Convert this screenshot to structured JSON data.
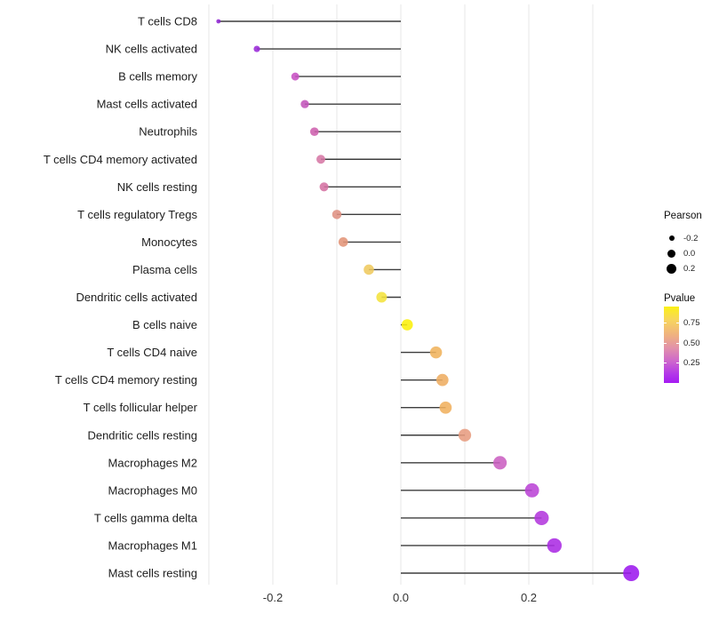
{
  "chart_data": {
    "type": "scatter",
    "variant": "lollipop",
    "orientation": "horizontal",
    "title": "",
    "xlabel": "",
    "ylabel": "",
    "xlim": [
      -0.32,
      0.39
    ],
    "grid": "vertical-major-only",
    "gridline_values": [
      -0.3,
      -0.2,
      -0.1,
      0.0,
      0.1,
      0.2,
      0.3
    ],
    "x_ticks": {
      "values": [
        -0.2,
        0.0,
        0.2
      ],
      "labels": [
        "-0.2",
        "0.0",
        "0.2"
      ]
    },
    "legend_position": "right",
    "points": [
      {
        "category": "T cells CD8",
        "pearson": -0.285,
        "pvalue": 0.1,
        "color": "#8F27D3"
      },
      {
        "category": "NK cells activated",
        "pearson": -0.225,
        "pvalue": 0.11,
        "color": "#9A2AD8"
      },
      {
        "category": "B cells memory",
        "pearson": -0.165,
        "pvalue": 0.28,
        "color": "#C751C3"
      },
      {
        "category": "Mast cells activated",
        "pearson": -0.15,
        "pvalue": 0.3,
        "color": "#C355BB"
      },
      {
        "category": "Neutrophils",
        "pearson": -0.135,
        "pvalue": 0.33,
        "color": "#CE61AE"
      },
      {
        "category": "T cells CD4 memory activated",
        "pearson": -0.125,
        "pvalue": 0.38,
        "color": "#D678A5"
      },
      {
        "category": "NK cells resting",
        "pearson": -0.12,
        "pvalue": 0.37,
        "color": "#D572A3"
      },
      {
        "category": "T cells regulatory  Tregs",
        "pearson": -0.1,
        "pvalue": 0.5,
        "color": "#DF9182"
      },
      {
        "category": "Monocytes",
        "pearson": -0.09,
        "pvalue": 0.52,
        "color": "#E29478"
      },
      {
        "category": "Plasma cells",
        "pearson": -0.05,
        "pvalue": 0.72,
        "color": "#EFC95E"
      },
      {
        "category": "Dendritic cells activated",
        "pearson": -0.03,
        "pvalue": 0.82,
        "color": "#F4E33C"
      },
      {
        "category": "B cells naive",
        "pearson": 0.01,
        "pvalue": 0.92,
        "color": "#FAF00A"
      },
      {
        "category": "T cells CD4 naive",
        "pearson": 0.055,
        "pvalue": 0.66,
        "color": "#F0B35C"
      },
      {
        "category": "T cells CD4 memory resting",
        "pearson": 0.065,
        "pvalue": 0.64,
        "color": "#EEAD62"
      },
      {
        "category": "T cells follicular helper",
        "pearson": 0.07,
        "pvalue": 0.65,
        "color": "#F0B05F"
      },
      {
        "category": "Dendritic cells resting",
        "pearson": 0.1,
        "pvalue": 0.55,
        "color": "#E79C80"
      },
      {
        "category": "Macrophages M2",
        "pearson": 0.155,
        "pvalue": 0.31,
        "color": "#CB60C2"
      },
      {
        "category": "Macrophages M0",
        "pearson": 0.205,
        "pvalue": 0.2,
        "color": "#BB44D6"
      },
      {
        "category": "T cells gamma delta",
        "pearson": 0.22,
        "pvalue": 0.17,
        "color": "#B338DD"
      },
      {
        "category": "Macrophages M1",
        "pearson": 0.24,
        "pvalue": 0.13,
        "color": "#AB2BE4"
      },
      {
        "category": "Mast cells resting",
        "pearson": 0.36,
        "pvalue": 0.05,
        "color": "#9C19EE"
      }
    ]
  },
  "legend": {
    "size": {
      "title": "Pearson",
      "items": [
        {
          "label": "-0.2",
          "value": -0.2
        },
        {
          "label": "0.0",
          "value": 0.0
        },
        {
          "label": "0.2",
          "value": 0.2
        }
      ]
    },
    "color": {
      "title": "Pvalue",
      "ticks": [
        "0.75",
        "0.50",
        "0.25"
      ],
      "tick_values": [
        0.75,
        0.5,
        0.25
      ],
      "gradient": [
        "#FBF116",
        "#F7D45F",
        "#EFB081",
        "#E18FAC",
        "#CD66CD",
        "#B337E8",
        "#A51BF2"
      ]
    }
  },
  "colors": {
    "background": "#ffffff",
    "grid": "#e7e7e7",
    "stem": "#3d3d3d",
    "axis_text": "#333333",
    "category_text": "#1d1d1d",
    "legend_dot": "#000000"
  }
}
